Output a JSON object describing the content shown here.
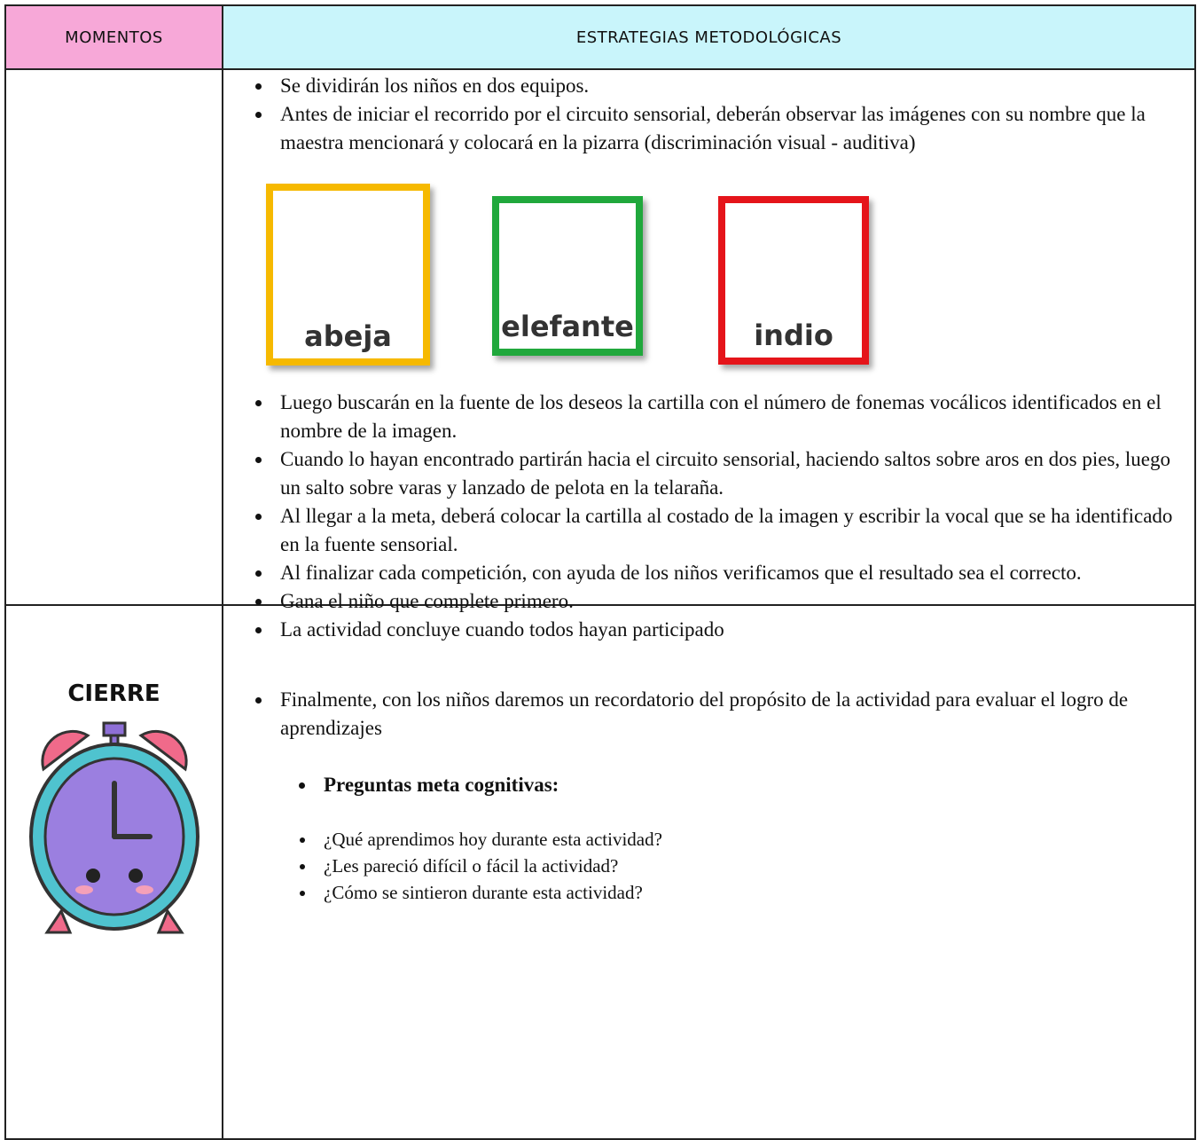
{
  "header": {
    "col1": "MOMENTOS",
    "col2": "ESTRATEGIAS METODOLÓGICAS"
  },
  "row1": {
    "items_before": [
      "Se dividirán los niños en dos equipos.",
      "Antes de iniciar el recorrido por el circuito sensorial, deberán observar las imágenes con su nombre que la maestra mencionará y colocará en la pizarra (discriminación visual - auditiva)"
    ],
    "cards": [
      {
        "label": "abeja"
      },
      {
        "label": "elefante"
      },
      {
        "label": "indio"
      }
    ],
    "items_after": [
      "Luego buscarán en la fuente de los deseos la cartilla con el número de fonemas vocálicos identificados en el nombre de la imagen.",
      "Cuando lo hayan encontrado partirán hacia el circuito sensorial, haciendo saltos sobre aros en dos pies, luego un salto sobre varas y lanzado de pelota en la telaraña.",
      "Al llegar a la meta, deberá colocar la cartilla al costado de la imagen y escribir la vocal que se ha identificado en la fuente sensorial.",
      "Al finalizar cada competición, con ayuda de los niños verificamos que el resultado sea el correcto.",
      "Gana el niño que complete primero.",
      "La actividad concluye cuando todos hayan participado"
    ]
  },
  "row2": {
    "moment": "CIERRE",
    "item": "Finalmente, con los niños daremos un recordatorio del propósito de la actividad para evaluar el logro de aprendizajes",
    "subheading": "Preguntas meta cognitivas:",
    "questions": [
      "¿Qué aprendimos hoy durante esta actividad?",
      "¿Les pareció difícil o fácil la actividad?",
      "¿Cómo se sintieron durante esta actividad?"
    ]
  }
}
